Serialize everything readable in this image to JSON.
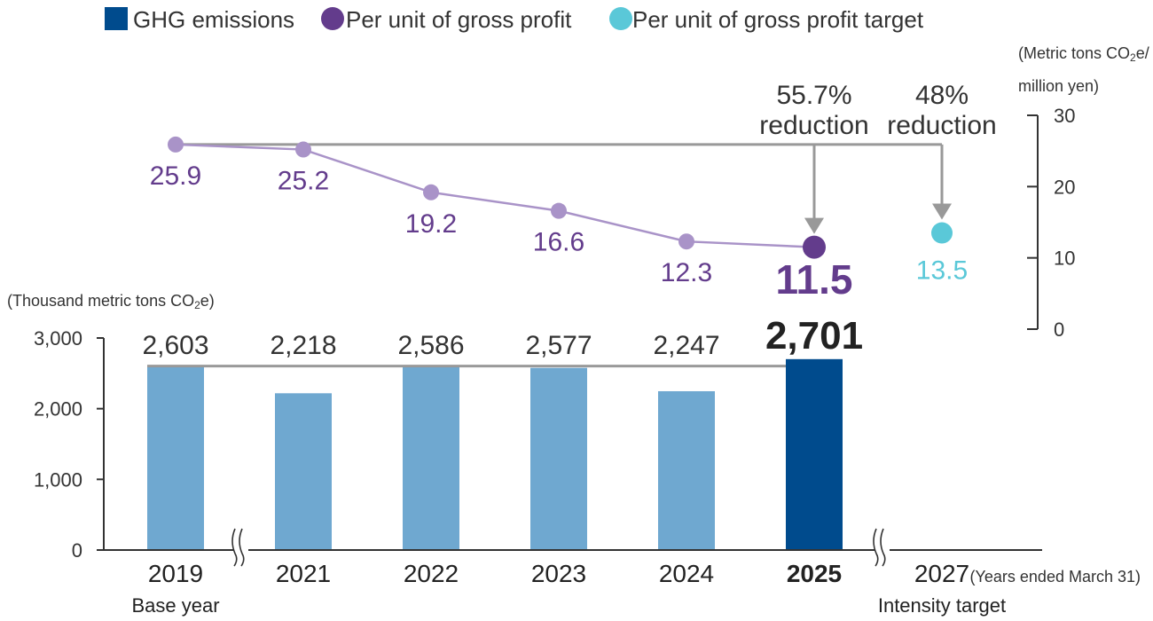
{
  "chart_data": {
    "type": "bar",
    "title": "",
    "legend": [
      {
        "label": "GHG emissions",
        "shape": "square",
        "color": "#004b8d"
      },
      {
        "label": "Per unit of gross profit",
        "shape": "circle",
        "color": "#633c8c"
      },
      {
        "label": "Per unit of gross profit target",
        "shape": "circle",
        "color": "#5ac8d8"
      }
    ],
    "categories": [
      "2019",
      "2021",
      "2022",
      "2023",
      "2024",
      "2025",
      "2027"
    ],
    "category_notes": {
      "2019": "Base year",
      "2027": "Intensity target"
    },
    "highlight_category": "2025",
    "x_note": "(Years ended March 31)",
    "bar_series": {
      "name": "GHG emissions",
      "unit_label": "(Thousand metric tons CO₂e)",
      "ylim": [
        0,
        3000
      ],
      "ticks": [
        0,
        1000,
        2000,
        3000
      ],
      "tick_labels": [
        "0",
        "1,000",
        "2,000",
        "3,000"
      ],
      "values": [
        2603,
        2218,
        2586,
        2577,
        2247,
        2701,
        null
      ],
      "labels": [
        "2,603",
        "2,218",
        "2,586",
        "2,577",
        "2,247",
        "2,701",
        ""
      ],
      "color": "#6fa8d0",
      "highlight_color": "#004b8d",
      "reference_value": 2603
    },
    "line_series": {
      "name": "Per unit of gross profit",
      "unit_label_line1": "(Metric tons CO₂e/",
      "unit_label_line2": "million yen)",
      "ylim": [
        0,
        30
      ],
      "ticks": [
        0,
        10,
        20,
        30
      ],
      "tick_labels": [
        "0",
        "10",
        "20",
        "30"
      ],
      "values": [
        25.9,
        25.2,
        19.2,
        16.6,
        12.3,
        11.5
      ],
      "labels": [
        "25.9",
        "25.2",
        "19.2",
        "16.6",
        "12.3",
        "11.5"
      ],
      "line_color": "#a993c8",
      "highlight_color": "#633c8c"
    },
    "target": {
      "name": "Per unit of gross profit target",
      "category": "2027",
      "value": 13.5,
      "label": "13.5",
      "color": "#5ac8d8"
    },
    "reductions": [
      {
        "category": "2025",
        "line1": "55.7%",
        "line2": "reduction"
      },
      {
        "category": "2027",
        "line1": "48%",
        "line2": "reduction"
      }
    ]
  }
}
